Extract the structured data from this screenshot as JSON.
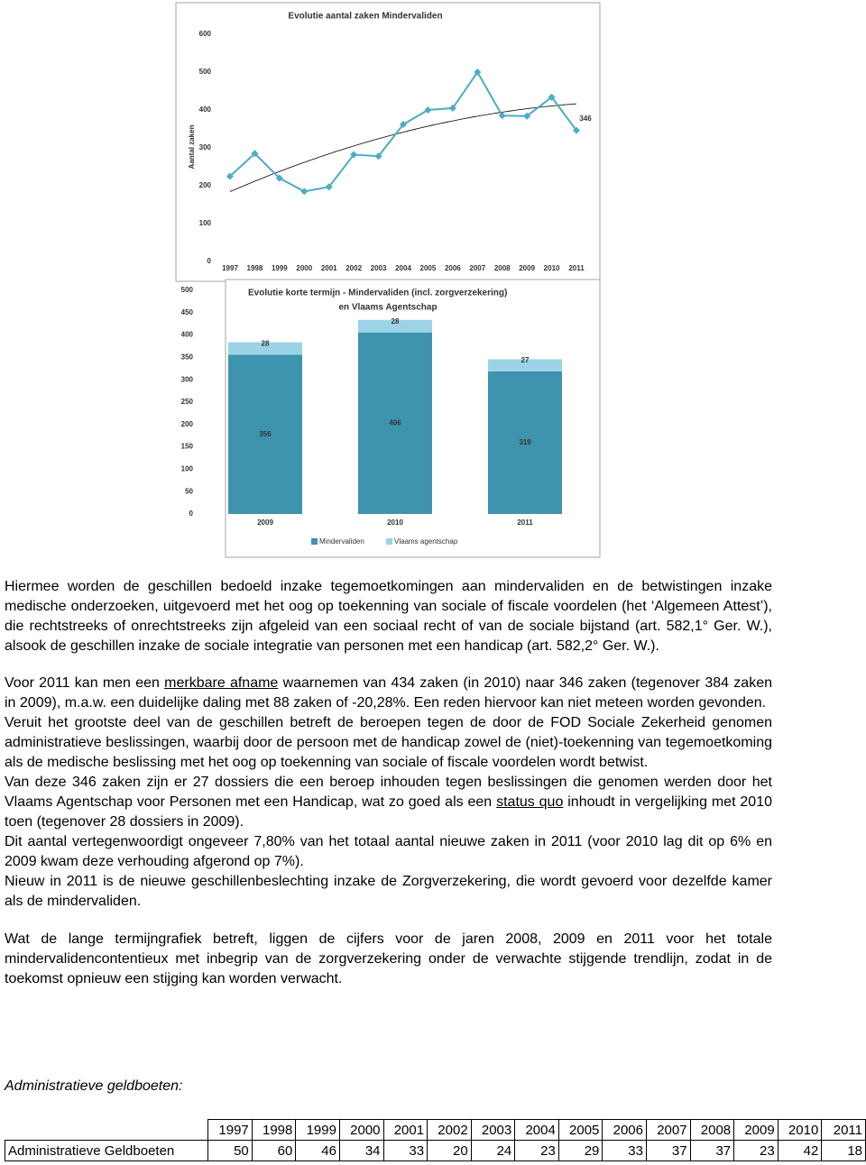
{
  "chart_data": [
    {
      "type": "line",
      "title": "Evolutie aantal zaken Mindervaliden",
      "y_label": "Aantal zaken",
      "categories": [
        "1997",
        "1998",
        "1999",
        "2000",
        "2001",
        "2002",
        "2003",
        "2004",
        "2005",
        "2006",
        "2007",
        "2008",
        "2009",
        "2010",
        "2011"
      ],
      "series": [
        {
          "name": "Aantal zaken",
          "color": "#4bacc6",
          "values": [
            225,
            285,
            220,
            185,
            197,
            282,
            278,
            362,
            400,
            405,
            500,
            385,
            384,
            434,
            346
          ]
        }
      ],
      "ylim": [
        0,
        600
      ],
      "yticks": [
        0,
        100,
        200,
        300,
        400,
        500,
        600
      ],
      "trendline": "polynomial",
      "data_labels": "last"
    },
    {
      "type": "bar",
      "stacked": true,
      "title": [
        "Evolutie korte termijn - Mindervaliden (incl. zorgverzekering)",
        "en Vlaams Agentschap"
      ],
      "categories": [
        "2009",
        "2010",
        "2011"
      ],
      "series": [
        {
          "name": "Mindervaliden",
          "color": "#3e93ae",
          "values": [
            356,
            406,
            319
          ]
        },
        {
          "name": "Vlaams agentschap",
          "color": "#9dd3e6",
          "values": [
            28,
            28,
            27
          ]
        }
      ],
      "ylim": [
        0,
        500
      ],
      "yticks": [
        0,
        50,
        100,
        150,
        200,
        250,
        300,
        350,
        400,
        450,
        500
      ],
      "legend": "bottom"
    }
  ],
  "body": {
    "paragraphs": [
      [
        "Hiermee worden de geschillen bedoeld inzake tegemoetkomingen aan mindervaliden en de betwistingen inzake medische onderzoeken, uitgevoerd met het oog op toekenning van sociale of fiscale voordelen (het ‘Algemeen Attest’), die rechtstreeks of onrechtstreeks zijn afgeleid van een sociaal recht of van de sociale bijstand (art. 582,1° Ger. W.), alsook de geschillen inzake de sociale integratie van personen met een handicap (art. 582,2° Ger. W.)."
      ],
      [
        "Voor 2011 kan men een ",
        {
          "text": "merkbare afname",
          "underline": true
        },
        " waarnemen van 434 zaken (in 2010) naar 346 zaken (tegenover 384 zaken in 2009), m.a.w. een duidelijke daling met 88 zaken of -20,28%. Een reden hiervoor kan niet meteen worden gevonden."
      ],
      [
        "Veruit het grootste deel van de geschillen betreft de beroepen tegen de door de FOD Sociale Zekerheid genomen administratieve beslissingen, waarbij door de persoon met de handicap zowel de (niet)-toekenning van tegemoetkoming als de medische beslissing met het oog op toekenning van sociale of fiscale voordelen wordt betwist."
      ],
      [
        "Van deze 346 zaken zijn er 27 dossiers die een beroep inhouden tegen beslissingen die genomen werden door het Vlaams Agentschap voor Personen met een Handicap, wat zo goed als een ",
        {
          "text": "status quo",
          "underline": true
        },
        " inhoudt in vergelijking met 2010 toen (tegenover 28 dossiers in 2009)."
      ],
      [
        "Dit aantal vertegenwoordigt ongeveer 7,80% van het totaal aantal nieuwe zaken in 2011 (voor 2010 lag dit op 6% en 2009 kwam deze verhouding afgerond op 7%)."
      ],
      [
        "Nieuw in 2011 is de nieuwe geschillenbeslechting inzake de Zorgverzekering, die wordt gevoerd voor dezelfde kamer als de mindervaliden."
      ],
      [
        "Wat de lange termijngrafiek betreft, liggen de cijfers voor de jaren 2008, 2009 en 2011 voor het totale mindervalidencontentieux met inbegrip van de zorgverzekering onder de verwachte stijgende trendlijn, zodat in de toekomst opnieuw een stijging kan worden verwacht."
      ]
    ],
    "heading": "Administratieve geldboeten:"
  },
  "table": {
    "header": [
      "1997",
      "1998",
      "1999",
      "2000",
      "2001",
      "2002",
      "2003",
      "2004",
      "2005",
      "2006",
      "2007",
      "2008",
      "2009",
      "2010",
      "2011"
    ],
    "row_label": "Administratieve Geldboeten",
    "values": [
      50,
      60,
      46,
      34,
      33,
      20,
      24,
      23,
      29,
      33,
      37,
      37,
      23,
      42,
      18
    ]
  }
}
